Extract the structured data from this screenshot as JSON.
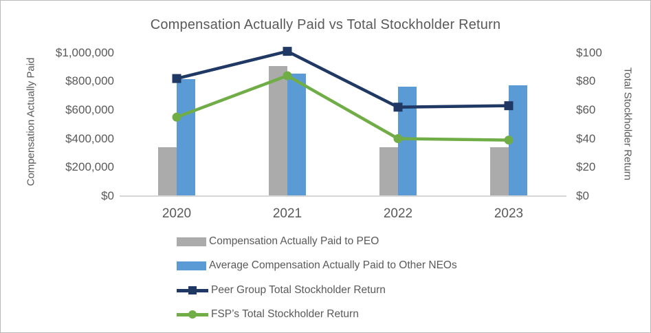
{
  "colors": {
    "peo_bar": "#ABABAB",
    "neo_bar": "#5B9BD5",
    "peer_line": "#1F3864",
    "fsp_line": "#70AD47",
    "text": "#595959",
    "axis_line": "#D6D6D6",
    "canvas_border": "#B9B9B9"
  },
  "chart_data": {
    "type": "combo (bar + line)",
    "title": "Compensation Actually Paid vs Total Stockholder Return",
    "categories": [
      "2020",
      "2021",
      "2022",
      "2023"
    ],
    "left_axis": {
      "title": "Compensation Actually Paid",
      "min": 0,
      "max": 1000000,
      "tick_step": 200000,
      "ticks": [
        "$0",
        "$200,000",
        "$400,000",
        "$600,000",
        "$800,000",
        "$1,000,000"
      ]
    },
    "right_axis": {
      "title": "Total Stockholder Return",
      "min": 0,
      "max": 100,
      "tick_step": 20,
      "ticks": [
        "$0",
        "$20",
        "$40",
        "$60",
        "$80",
        "$100"
      ]
    },
    "grid": false,
    "legend_position": "bottom-left",
    "series": [
      {
        "name": "Compensation Actually Paid to PEO",
        "type": "bar",
        "axis": "left",
        "color": "#ABABAB",
        "values": [
          340000,
          905000,
          340000,
          340000
        ]
      },
      {
        "name": "Average Compensation Actually Paid to Other NEOs",
        "type": "bar",
        "axis": "left",
        "color": "#5B9BD5",
        "values": [
          815000,
          855000,
          765000,
          775000
        ]
      },
      {
        "name": "Peer Group Total Stockholder Return",
        "type": "line",
        "marker": "square",
        "axis": "right",
        "color": "#1F3864",
        "values": [
          82,
          101,
          62,
          63
        ]
      },
      {
        "name": "FSP’s Total Stockholder Return",
        "type": "line",
        "marker": "circle",
        "axis": "right",
        "color": "#70AD47",
        "values": [
          55,
          84,
          40,
          39
        ]
      }
    ]
  }
}
